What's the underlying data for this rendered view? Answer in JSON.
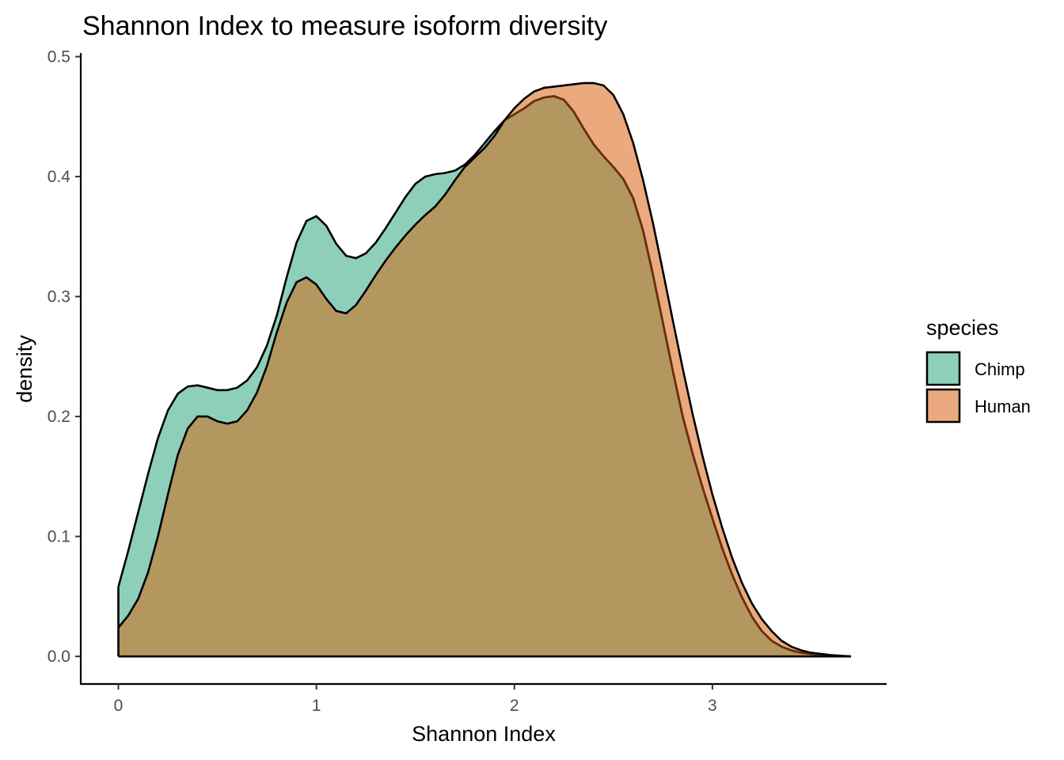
{
  "chart_data": {
    "type": "area",
    "title": "Shannon Index to measure isoform diversity",
    "xlabel": "Shannon Index",
    "ylabel": "density",
    "xlim": [
      -0.19,
      3.88
    ],
    "ylim": [
      -0.023,
      0.503
    ],
    "x_ticks": [
      0,
      1,
      2,
      3
    ],
    "x_tick_labels": [
      "0",
      "1",
      "2",
      "3"
    ],
    "y_ticks": [
      0.0,
      0.1,
      0.2,
      0.3,
      0.4,
      0.5
    ],
    "y_tick_labels": [
      "0.0",
      "0.1",
      "0.2",
      "0.3",
      "0.4",
      "0.5"
    ],
    "grid": false,
    "legend": {
      "title": "species",
      "position": "right"
    },
    "series": [
      {
        "name": "Chimp",
        "fill": "#8ecfbc",
        "outline": "#000000",
        "points": [
          [
            0,
            0.058
          ],
          [
            0.05,
            0.088
          ],
          [
            0.1,
            0.12
          ],
          [
            0.15,
            0.152
          ],
          [
            0.2,
            0.182
          ],
          [
            0.25,
            0.205
          ],
          [
            0.3,
            0.219
          ],
          [
            0.35,
            0.225
          ],
          [
            0.4,
            0.226
          ],
          [
            0.45,
            0.224
          ],
          [
            0.5,
            0.222
          ],
          [
            0.55,
            0.222
          ],
          [
            0.6,
            0.224
          ],
          [
            0.65,
            0.23
          ],
          [
            0.7,
            0.241
          ],
          [
            0.75,
            0.259
          ],
          [
            0.8,
            0.284
          ],
          [
            0.85,
            0.316
          ],
          [
            0.9,
            0.345
          ],
          [
            0.95,
            0.363
          ],
          [
            1.0,
            0.367
          ],
          [
            1.05,
            0.359
          ],
          [
            1.1,
            0.344
          ],
          [
            1.15,
            0.334
          ],
          [
            1.2,
            0.332
          ],
          [
            1.25,
            0.336
          ],
          [
            1.3,
            0.345
          ],
          [
            1.35,
            0.357
          ],
          [
            1.4,
            0.37
          ],
          [
            1.45,
            0.383
          ],
          [
            1.5,
            0.394
          ],
          [
            1.55,
            0.4
          ],
          [
            1.6,
            0.402
          ],
          [
            1.65,
            0.403
          ],
          [
            1.7,
            0.405
          ],
          [
            1.75,
            0.41
          ],
          [
            1.8,
            0.418
          ],
          [
            1.85,
            0.428
          ],
          [
            1.9,
            0.438
          ],
          [
            1.95,
            0.447
          ],
          [
            2.0,
            0.452
          ],
          [
            2.05,
            0.457
          ],
          [
            2.1,
            0.463
          ],
          [
            2.15,
            0.466
          ],
          [
            2.2,
            0.467
          ],
          [
            2.25,
            0.464
          ],
          [
            2.3,
            0.454
          ],
          [
            2.35,
            0.44
          ],
          [
            2.4,
            0.427
          ],
          [
            2.45,
            0.417
          ],
          [
            2.5,
            0.408
          ],
          [
            2.55,
            0.398
          ],
          [
            2.6,
            0.382
          ],
          [
            2.65,
            0.355
          ],
          [
            2.7,
            0.318
          ],
          [
            2.75,
            0.278
          ],
          [
            2.8,
            0.238
          ],
          [
            2.85,
            0.2
          ],
          [
            2.9,
            0.169
          ],
          [
            2.95,
            0.141
          ],
          [
            3.0,
            0.115
          ],
          [
            3.05,
            0.09
          ],
          [
            3.1,
            0.068
          ],
          [
            3.15,
            0.049
          ],
          [
            3.2,
            0.033
          ],
          [
            3.25,
            0.021
          ],
          [
            3.3,
            0.013
          ],
          [
            3.35,
            0.008
          ],
          [
            3.4,
            0.005
          ],
          [
            3.45,
            0.003
          ],
          [
            3.5,
            0.002
          ],
          [
            3.55,
            0.001
          ],
          [
            3.6,
            0.0005
          ],
          [
            3.7,
            0.0
          ]
        ]
      },
      {
        "name": "Human",
        "fill": "#eaaa7d",
        "outline": "#000000",
        "points": [
          [
            0,
            0.024
          ],
          [
            0.05,
            0.034
          ],
          [
            0.1,
            0.048
          ],
          [
            0.15,
            0.07
          ],
          [
            0.2,
            0.1
          ],
          [
            0.25,
            0.135
          ],
          [
            0.3,
            0.168
          ],
          [
            0.35,
            0.19
          ],
          [
            0.4,
            0.2
          ],
          [
            0.45,
            0.2
          ],
          [
            0.5,
            0.196
          ],
          [
            0.55,
            0.194
          ],
          [
            0.6,
            0.196
          ],
          [
            0.65,
            0.205
          ],
          [
            0.7,
            0.22
          ],
          [
            0.75,
            0.242
          ],
          [
            0.8,
            0.27
          ],
          [
            0.85,
            0.295
          ],
          [
            0.9,
            0.312
          ],
          [
            0.95,
            0.316
          ],
          [
            1.0,
            0.31
          ],
          [
            1.05,
            0.298
          ],
          [
            1.1,
            0.288
          ],
          [
            1.15,
            0.286
          ],
          [
            1.2,
            0.293
          ],
          [
            1.25,
            0.305
          ],
          [
            1.3,
            0.318
          ],
          [
            1.35,
            0.33
          ],
          [
            1.4,
            0.341
          ],
          [
            1.45,
            0.351
          ],
          [
            1.5,
            0.36
          ],
          [
            1.55,
            0.368
          ],
          [
            1.6,
            0.375
          ],
          [
            1.65,
            0.385
          ],
          [
            1.7,
            0.397
          ],
          [
            1.75,
            0.408
          ],
          [
            1.8,
            0.416
          ],
          [
            1.85,
            0.424
          ],
          [
            1.9,
            0.434
          ],
          [
            1.95,
            0.447
          ],
          [
            2.0,
            0.457
          ],
          [
            2.05,
            0.465
          ],
          [
            2.1,
            0.471
          ],
          [
            2.15,
            0.474
          ],
          [
            2.2,
            0.475
          ],
          [
            2.25,
            0.476
          ],
          [
            2.3,
            0.477
          ],
          [
            2.35,
            0.478
          ],
          [
            2.4,
            0.478
          ],
          [
            2.45,
            0.476
          ],
          [
            2.5,
            0.468
          ],
          [
            2.55,
            0.452
          ],
          [
            2.6,
            0.428
          ],
          [
            2.65,
            0.397
          ],
          [
            2.7,
            0.361
          ],
          [
            2.75,
            0.321
          ],
          [
            2.8,
            0.28
          ],
          [
            2.85,
            0.24
          ],
          [
            2.9,
            0.202
          ],
          [
            2.95,
            0.167
          ],
          [
            3.0,
            0.135
          ],
          [
            3.05,
            0.107
          ],
          [
            3.1,
            0.082
          ],
          [
            3.15,
            0.061
          ],
          [
            3.2,
            0.044
          ],
          [
            3.25,
            0.031
          ],
          [
            3.3,
            0.021
          ],
          [
            3.35,
            0.013
          ],
          [
            3.4,
            0.008
          ],
          [
            3.45,
            0.005
          ],
          [
            3.5,
            0.003
          ],
          [
            3.55,
            0.002
          ],
          [
            3.6,
            0.001
          ],
          [
            3.7,
            0.0
          ]
        ]
      }
    ],
    "overlap_fill": "#b3975f",
    "chimp_outline_inside": "#6b2e0a"
  }
}
